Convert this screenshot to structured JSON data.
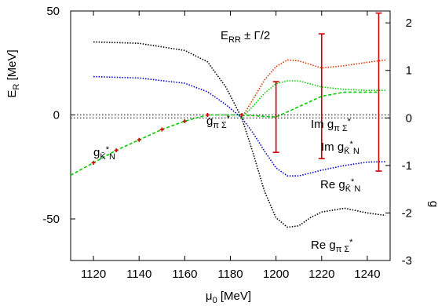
{
  "chart_data": {
    "type": "line",
    "title": "",
    "xlabel": "μ0 [MeV]",
    "xlim": [
      1110,
      1250
    ],
    "x_ticks": [
      1120,
      1140,
      1160,
      1180,
      1200,
      1220,
      1240
    ],
    "top_panel": {
      "ylabel": "ER [MeV]",
      "ylim": [
        -70,
        50
      ],
      "y_ticks": [
        -50,
        0,
        50
      ],
      "zero_line": 0,
      "series": [
        {
          "name": "ER ± ΓR/2",
          "style": "dashed",
          "color": "#00cc00",
          "x": [
            1110,
            1120,
            1130,
            1140,
            1150,
            1160,
            1170,
            1185,
            1200,
            1220,
            1230,
            1245
          ],
          "y": [
            -29,
            -23,
            -17,
            -12,
            -7,
            -3,
            0,
            0,
            -1,
            9,
            11,
            11
          ]
        }
      ],
      "points": {
        "color": "#cc0000",
        "x": [
          1120,
          1130,
          1140,
          1150,
          1160,
          1170,
          1185,
          1200,
          1220,
          1245
        ],
        "y": [
          -23,
          -17,
          -12,
          -7,
          -3,
          0,
          0,
          -1,
          9,
          11
        ],
        "half_width": [
          0,
          0,
          0,
          0,
          0,
          0,
          0,
          17,
          30,
          38
        ]
      },
      "annotation": "ER ± ΓR/2"
    },
    "bottom_panel": {
      "ylabel": "g",
      "ylim": [
        -3,
        2.25
      ],
      "y_ticks": [
        -3,
        -2,
        -1,
        0,
        1,
        2
      ],
      "zero_line": 0,
      "series": [
        {
          "name": "gπΣ* / Re gπΣ*",
          "color": "#000000",
          "x": [
            1120,
            1140,
            1160,
            1170,
            1178,
            1185,
            1190,
            1195,
            1200,
            1205,
            1210,
            1215,
            1220,
            1230,
            1240,
            1248
          ],
          "y": [
            1.6,
            1.57,
            1.42,
            1.18,
            0.65,
            0.0,
            -0.75,
            -1.55,
            -2.1,
            -2.3,
            -2.27,
            -2.1,
            -1.98,
            -1.9,
            -2.0,
            -2.05
          ]
        },
        {
          "name": "gK̄*N / Re gK̄*N",
          "color": "#0000cc",
          "x": [
            1120,
            1140,
            1160,
            1170,
            1178,
            1185,
            1190,
            1195,
            1200,
            1205,
            1210,
            1220,
            1230,
            1240,
            1248
          ],
          "y": [
            0.87,
            0.84,
            0.73,
            0.55,
            0.28,
            0.0,
            -0.32,
            -0.7,
            -1.05,
            -1.22,
            -1.22,
            -1.1,
            -1.0,
            -0.93,
            -0.92
          ]
        },
        {
          "name": "Im gπΣ*",
          "color": "#dd3300",
          "x": [
            1185,
            1190,
            1195,
            1200,
            1205,
            1210,
            1220,
            1230,
            1240,
            1248
          ],
          "y": [
            0.0,
            0.4,
            0.8,
            1.08,
            1.22,
            1.2,
            1.05,
            1.1,
            1.17,
            1.22
          ]
        },
        {
          "name": "Im gK̄*N",
          "color": "#00cc00",
          "x": [
            1185,
            1190,
            1195,
            1200,
            1205,
            1210,
            1220,
            1230,
            1240,
            1248
          ],
          "y": [
            0.0,
            0.25,
            0.52,
            0.72,
            0.78,
            0.78,
            0.65,
            0.6,
            0.58,
            0.58
          ]
        }
      ]
    },
    "labels": {
      "g_pi_sigma": {
        "base": "g",
        "sub": "π Σ",
        "sup": "*"
      },
      "g_kbar_n": {
        "base": "g",
        "sub": "K̄",
        "sup": "*",
        "sub2": "N"
      },
      "im_g_pi_sigma": {
        "prefix": "Im ",
        "base": "g",
        "sub": "π Σ",
        "sup": "*"
      },
      "im_g_kbar_n": {
        "prefix": "Im ",
        "base": "g",
        "sub": "K̄",
        "sup": "*",
        "sub2": "N"
      },
      "re_g_kbar_n": {
        "prefix": "Re ",
        "base": "g",
        "sub": "K̄",
        "sup": "*",
        "sub2": "N"
      },
      "re_g_pi_sigma": {
        "prefix": "Re ",
        "base": "g",
        "sub": "π Σ",
        "sup": "*"
      },
      "er_annotation": {
        "base": "E",
        "sub": "R",
        "mid": " ± Γ",
        "sub2": "R",
        "tail": "/2"
      },
      "ylabel_top": {
        "base": "E",
        "sub": "R",
        "tail": " [MeV]"
      },
      "xlabel": {
        "base": "μ",
        "sub": "0",
        "tail": " [MeV]"
      },
      "ylabel_right": "g"
    }
  }
}
